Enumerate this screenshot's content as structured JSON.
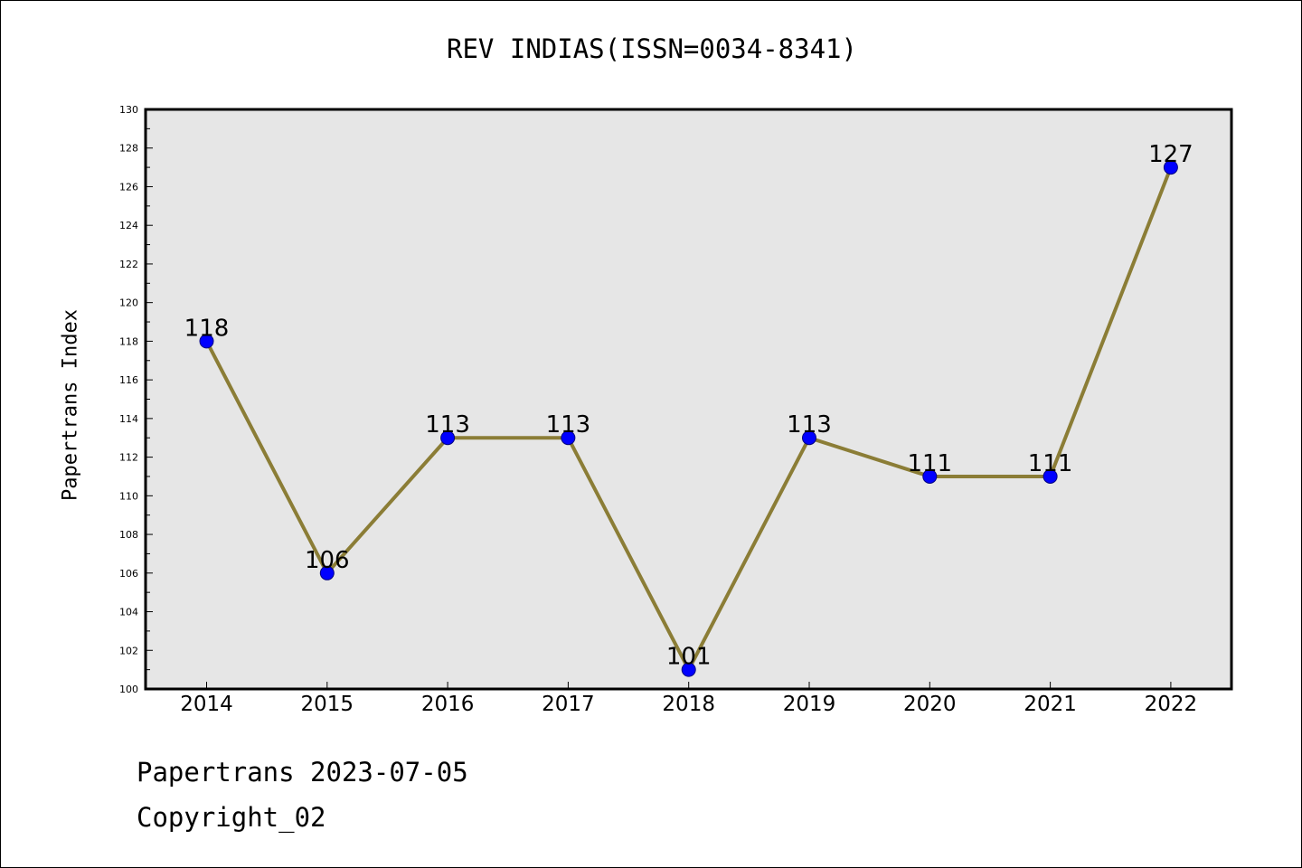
{
  "chart_data": {
    "type": "line",
    "title": "REV INDIAS(ISSN=0034-8341)",
    "ylabel": "Papertrans Index",
    "xlabel": "",
    "x": [
      "2014",
      "2015",
      "2016",
      "2017",
      "2018",
      "2019",
      "2020",
      "2021",
      "2022"
    ],
    "series": [
      {
        "values": [
          118,
          106,
          113,
          113,
          101,
          113,
          111,
          111,
          127
        ]
      }
    ],
    "ylim": [
      100,
      130
    ],
    "ytick_step": 2,
    "grid": false,
    "data_labels": [
      "118",
      "106",
      "113",
      "113",
      "101",
      "113",
      "111",
      "111",
      "127"
    ]
  },
  "footer": {
    "line1": "Papertrans 2023-07-05",
    "line2": "Copyright_02"
  },
  "colors": {
    "plot_background": "#e6e6e6",
    "line": "#8b7d36",
    "marker_fill": "#0000ff",
    "marker_edge": "#000080",
    "axes": "#000000",
    "text": "#000000"
  }
}
